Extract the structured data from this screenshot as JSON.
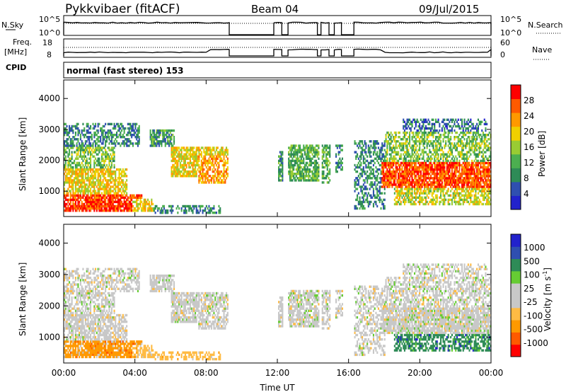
{
  "header": {
    "station": "Pykkvibaer (fitACF)",
    "beam": "Beam 04",
    "date": "09/Jul/2015"
  },
  "top_panels": {
    "nsky_label": "N.Sky",
    "nsky_ticks": [
      "10^5",
      "10^0"
    ],
    "nsearch_label": "N.Search",
    "nsearch_ticks": [
      "10^5",
      "10^0"
    ],
    "freq_label_1": "Freq.",
    "freq_label_2": "[MHz]",
    "freq_ticks": [
      "18",
      "8"
    ],
    "nave_label": "Nave",
    "nave_ticks": [
      "60",
      "0"
    ],
    "cpid_label": "CPID",
    "cpid_text": "normal (fast stereo) 153"
  },
  "colors": {
    "power": [
      "#2222cc",
      "#2f4fb0",
      "#2e8b57",
      "#4caf50",
      "#99cc33",
      "#f0d000",
      "#ff9900",
      "#ff5a00",
      "#ff0000"
    ],
    "velocity": [
      "#ff0000",
      "#ff5a00",
      "#ff9900",
      "#ffbb44",
      "#c8c8c8",
      "#c8c8c8",
      "#66cc33",
      "#2e8b57",
      "#2f4fb0",
      "#2222cc"
    ]
  },
  "chart_data": [
    {
      "type": "heatmap",
      "name": "power",
      "ylabel": "Slant Range [km]",
      "xlabel": "Time UT",
      "x_ticks": [
        "00:00",
        "04:00",
        "08:00",
        "12:00",
        "16:00",
        "20:00",
        "00:00"
      ],
      "y_ticks": [
        "1000",
        "2000",
        "3000",
        "4000"
      ],
      "ylim": [
        180,
        4600
      ],
      "xlim_hours": [
        0,
        24
      ],
      "colorbar_label": "Power [dB]",
      "colorbar_ticks": [
        "28",
        "24",
        "20",
        "16",
        "12",
        "8",
        "4"
      ]
    },
    {
      "type": "heatmap",
      "name": "velocity",
      "ylabel": "Slant Range [km]",
      "xlabel": "Time UT",
      "x_ticks": [
        "00:00",
        "04:00",
        "08:00",
        "12:00",
        "16:00",
        "20:00",
        "00:00"
      ],
      "y_ticks": [
        "1000",
        "2000",
        "3000",
        "4000"
      ],
      "ylim": [
        180,
        4600
      ],
      "xlim_hours": [
        0,
        24
      ],
      "colorbar_label": "Velocity [m s^-1]",
      "colorbar_ticks": [
        "1000",
        "500",
        "100",
        "25",
        "-25",
        "-100",
        "-500",
        "-1000"
      ]
    }
  ]
}
